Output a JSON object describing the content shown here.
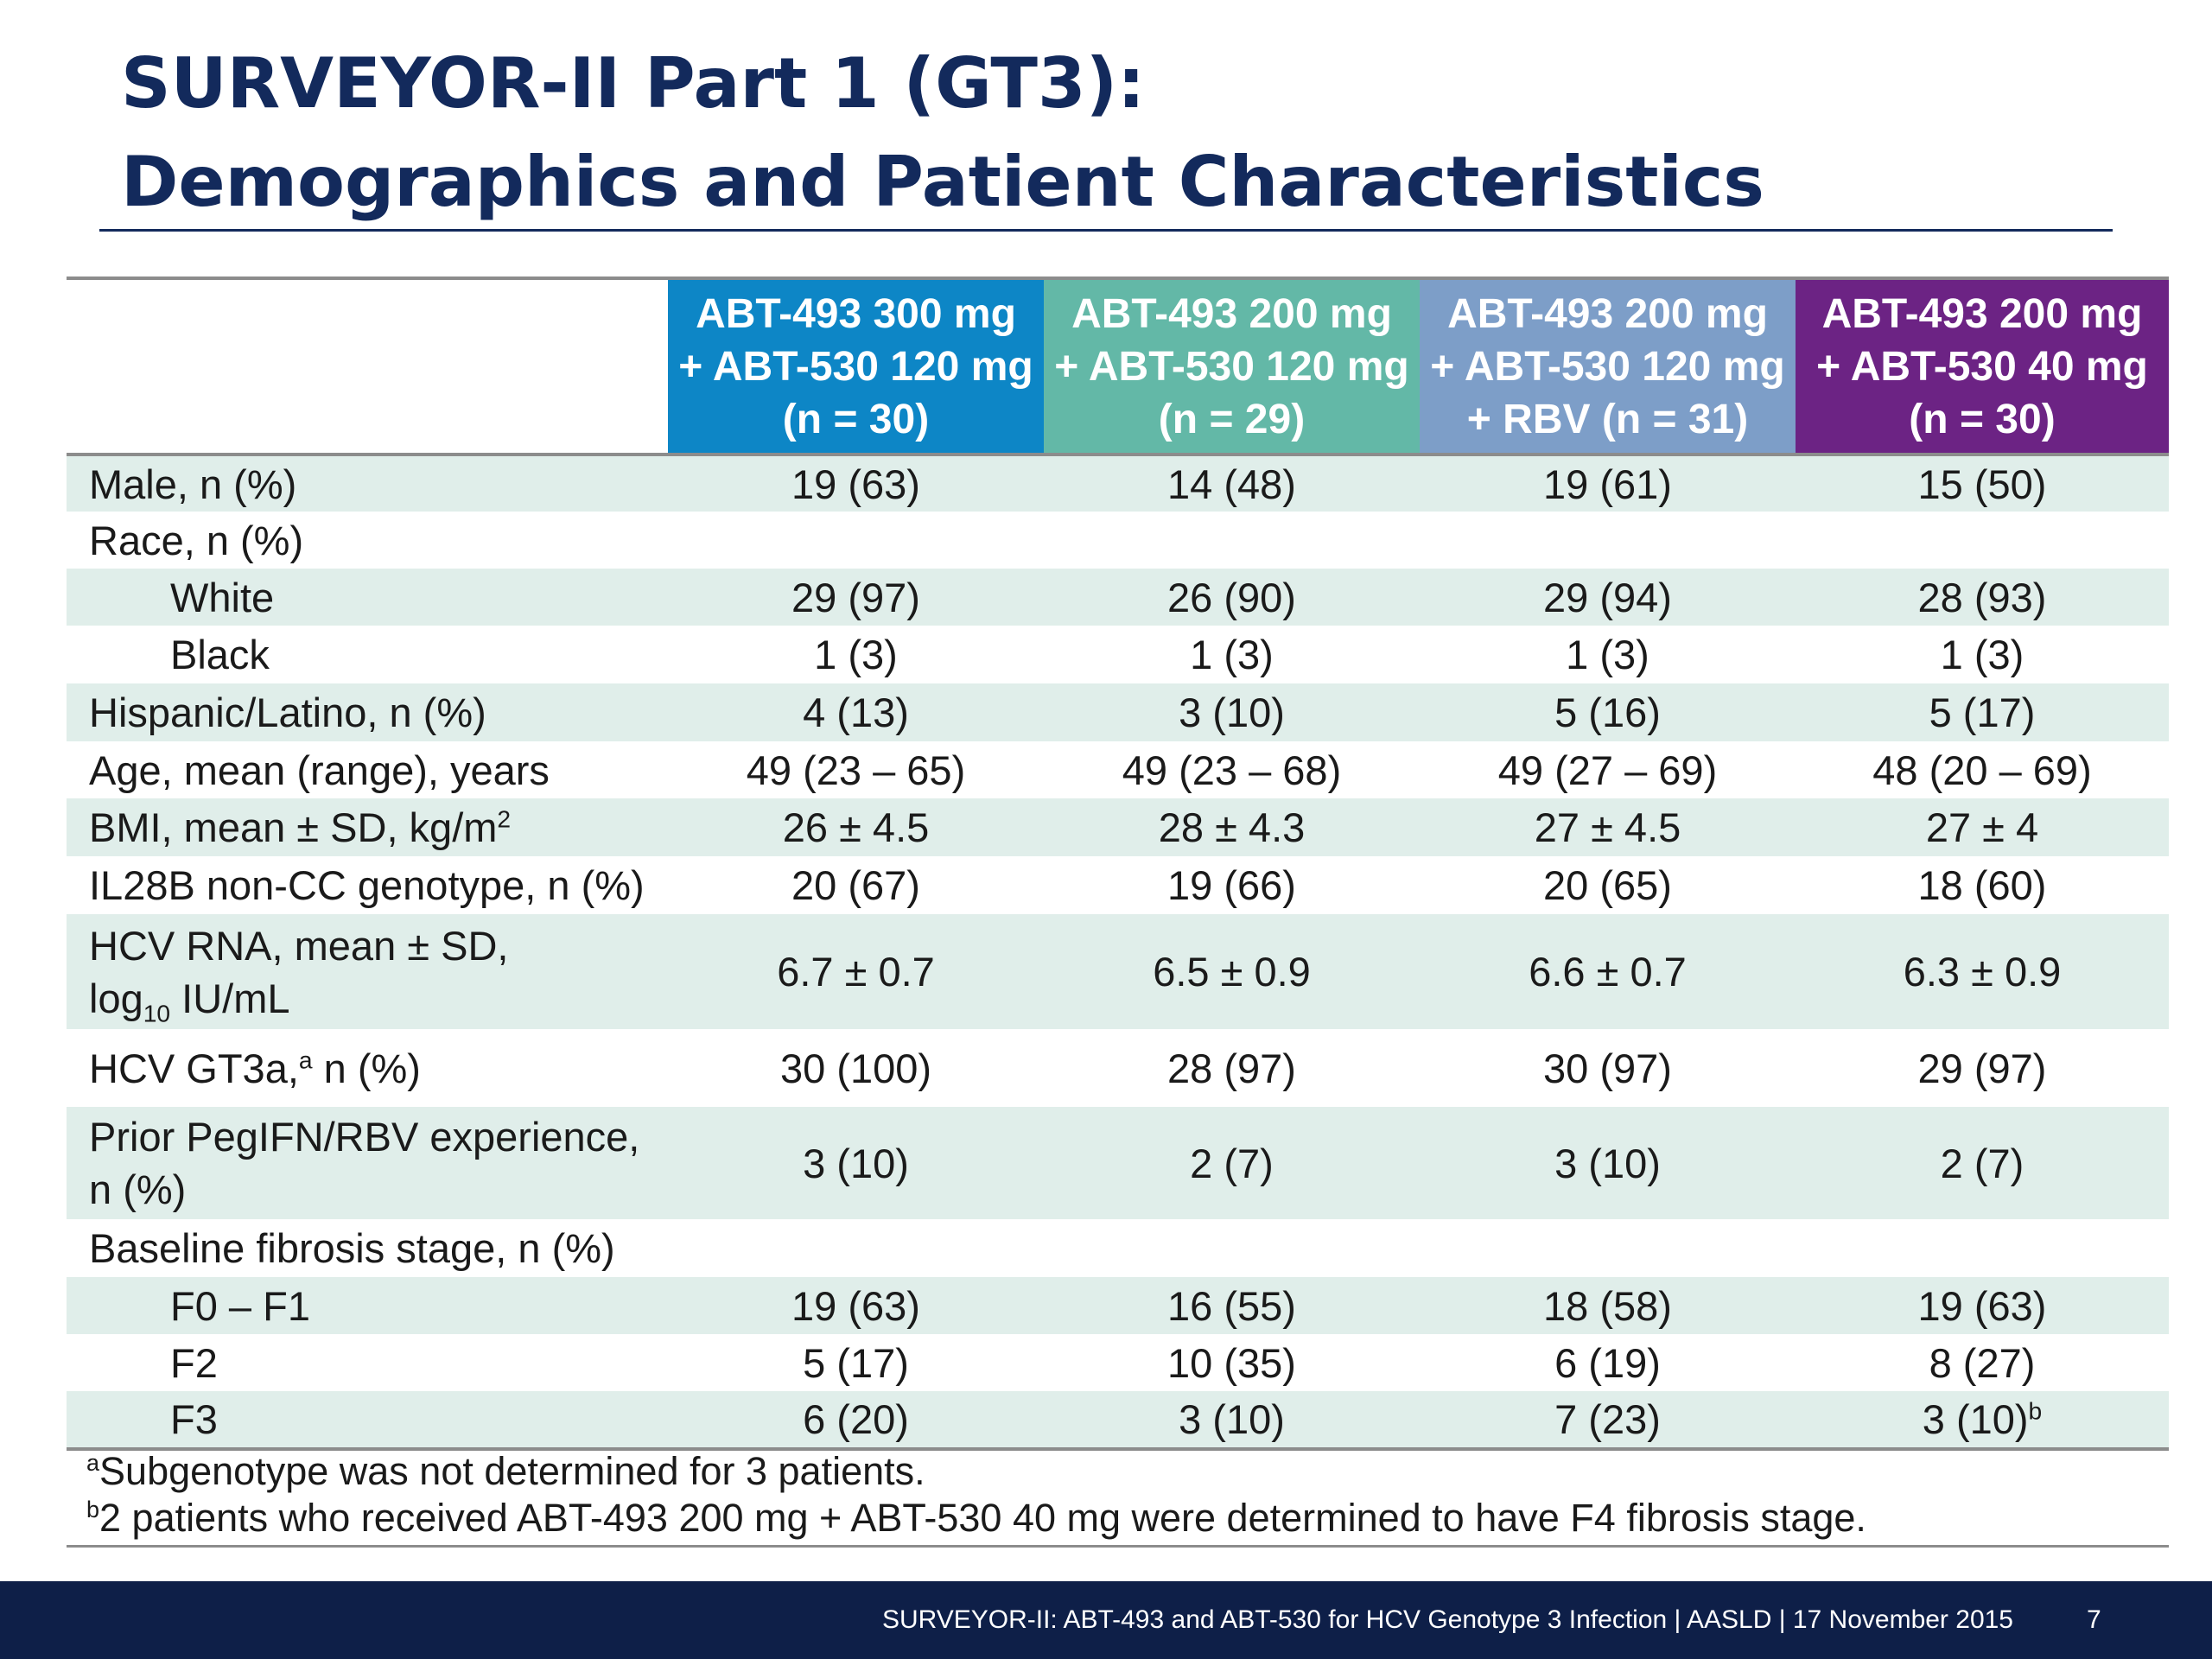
{
  "slide": {
    "title_line1": "SURVEYOR-II Part 1 (GT3):",
    "title_line2": "Demographics and Patient Characteristics"
  },
  "table": {
    "columns": [
      {
        "line1": "ABT-493 300 mg",
        "line2": "+ ABT-530 120 mg",
        "line3": "(n = 30)",
        "color": "#0d86c6"
      },
      {
        "line1": "ABT-493 200 mg",
        "line2": "+ ABT-530 120 mg",
        "line3": "(n = 29)",
        "color": "#63b8a7"
      },
      {
        "line1": "ABT-493 200 mg",
        "line2": "+ ABT-530 120 mg",
        "line3": "+ RBV (n = 31)",
        "color": "#7d9ec8"
      },
      {
        "line1": "ABT-493 200 mg",
        "line2": "+ ABT-530 40 mg",
        "line3": "(n = 30)",
        "color": "#6c2384"
      }
    ],
    "rows": [
      {
        "label": "Male, n (%)",
        "values": [
          "19 (63)",
          "14 (48)",
          "19 (61)",
          "15 (50)"
        ]
      },
      {
        "label": "Race, n (%)",
        "values": [
          "",
          "",
          "",
          ""
        ]
      },
      {
        "label": "White",
        "values": [
          "29 (97)",
          "26 (90)",
          "29 (94)",
          "28 (93)"
        ]
      },
      {
        "label": "Black",
        "values": [
          "1 (3)",
          "1 (3)",
          "1 (3)",
          "1 (3)"
        ]
      },
      {
        "label": "Hispanic/Latino, n (%)",
        "values": [
          "4 (13)",
          "3 (10)",
          "5 (16)",
          "5 (17)"
        ]
      },
      {
        "label": "Age, mean (range), years",
        "values": [
          "49 (23 – 65)",
          "49 (23 – 68)",
          "49 (27 – 69)",
          "48 (20 – 69)"
        ]
      },
      {
        "label": "BMI, mean ± SD, kg/m",
        "label_sup": "2",
        "values": [
          "26 ± 4.5",
          "28 ± 4.3",
          "27 ± 4.5",
          "27 ± 4"
        ]
      },
      {
        "label": "IL28B non-CC genotype, n (%)",
        "values": [
          "20 (67)",
          "19 (66)",
          "20 (65)",
          "18 (60)"
        ]
      },
      {
        "label_line1": "HCV RNA, mean ± SD,",
        "label_line2_pre": "log",
        "label_line2_sub": "10",
        "label_line2_post": " IU/mL",
        "values": [
          "6.7 ± 0.7",
          "6.5 ± 0.9",
          "6.6 ± 0.7",
          "6.3 ± 0.9"
        ]
      },
      {
        "label_pre": "HCV GT3a,",
        "label_sup": "a",
        "label_post": " n (%)",
        "values": [
          "30 (100)",
          "28 (97)",
          "30 (97)",
          "29 (97)"
        ]
      },
      {
        "label_line1": "Prior PegIFN/RBV experience,",
        "label_line2": "n (%)",
        "values": [
          "3 (10)",
          "2 (7)",
          "3 (10)",
          "2 (7)"
        ]
      },
      {
        "label": "Baseline fibrosis stage, n (%)",
        "values": [
          "",
          "",
          "",
          ""
        ]
      },
      {
        "label": "F0 – F1",
        "values": [
          "19 (63)",
          "16 (55)",
          "18 (58)",
          "19 (63)"
        ]
      },
      {
        "label": "F2",
        "values": [
          "5 (17)",
          "10 (35)",
          "6 (19)",
          "8 (27)"
        ]
      },
      {
        "label": "F3",
        "values": [
          "6 (20)",
          "3 (10)",
          "7 (23)",
          "3 (10)"
        ],
        "last_value_sup": "b"
      }
    ]
  },
  "footnotes": {
    "a_marker": "a",
    "a_text": "Subgenotype was not determined for 3 patients.",
    "b_marker": "b",
    "b_text": "2 patients who received ABT-493 200 mg + ABT-530 40 mg were determined to have F4 fibrosis stage."
  },
  "footer": {
    "text": "SURVEYOR-II: ABT-493 and ABT-530 for HCV Genotype 3 Infection   | AASLD | 17 November 2015",
    "page_number": "7"
  }
}
